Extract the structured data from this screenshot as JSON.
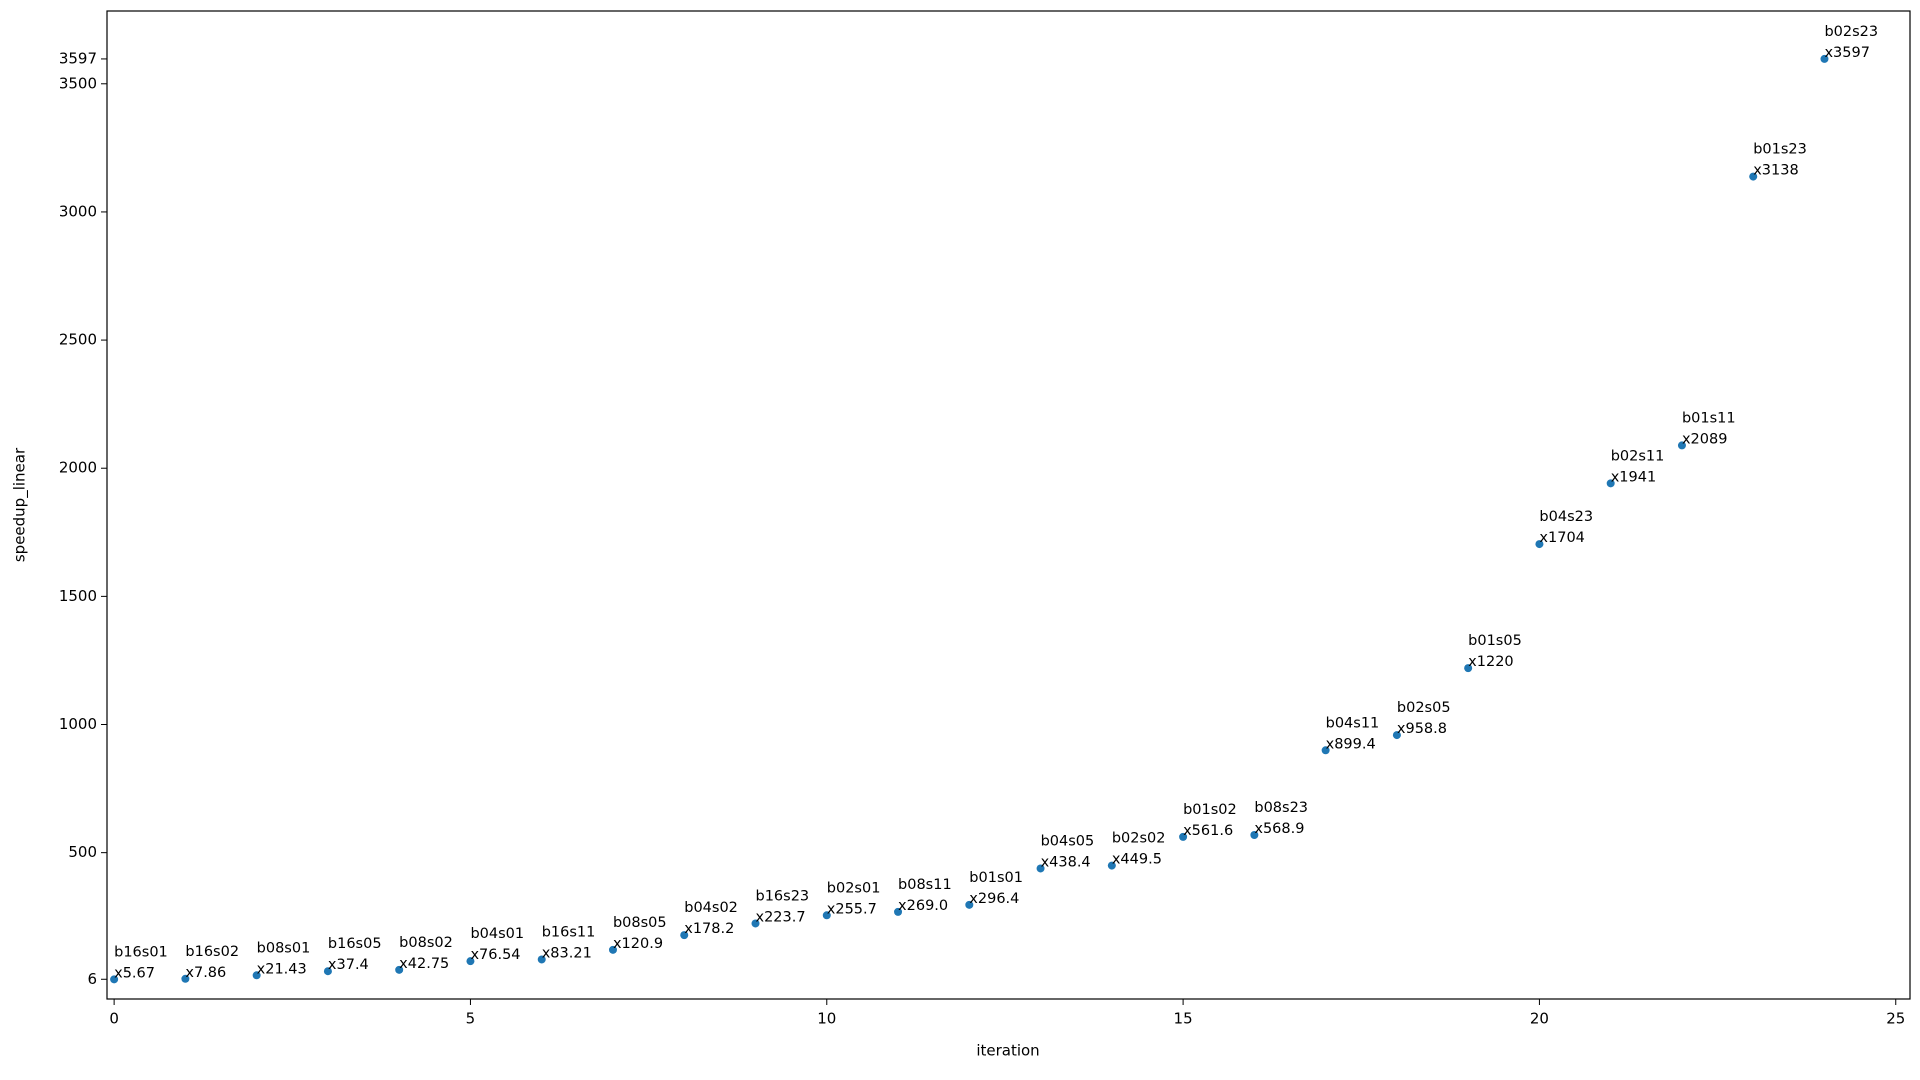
{
  "chart_data": {
    "type": "scatter",
    "xlabel": "iteration",
    "ylabel": "speedup_linear",
    "x": [
      0,
      1,
      2,
      3,
      4,
      5,
      6,
      7,
      8,
      9,
      10,
      11,
      12,
      13,
      14,
      15,
      16,
      17,
      18,
      19,
      20,
      21,
      22,
      23,
      24
    ],
    "series": [
      {
        "color": "#1f77b4",
        "values": [
          5.67,
          7.86,
          21.43,
          37.4,
          42.75,
          76.54,
          83.21,
          120.9,
          178.2,
          223.7,
          255.7,
          269.0,
          296.4,
          438.4,
          449.5,
          561.6,
          568.9,
          899.4,
          958.8,
          1220,
          1704,
          1941,
          2089,
          3138,
          3597
        ],
        "value_labels": [
          "x5.67",
          "x7.86",
          "x21.43",
          "x37.4",
          "x42.75",
          "x76.54",
          "x83.21",
          "x120.9",
          "x178.2",
          "x223.7",
          "x255.7",
          "x269.0",
          "x296.4",
          "x438.4",
          "x449.5",
          "x561.6",
          "x568.9",
          "x899.4",
          "x958.8",
          "x1220",
          "x1704",
          "x1941",
          "x2089",
          "x3138",
          "x3597"
        ],
        "point_labels": [
          "b16s01",
          "b16s02",
          "b08s01",
          "b16s05",
          "b08s02",
          "b04s01",
          "b16s11",
          "b08s05",
          "b04s02",
          "b16s23",
          "b02s01",
          "b08s11",
          "b01s01",
          "b04s05",
          "b02s02",
          "b01s02",
          "b08s23",
          "b04s11",
          "b02s05",
          "b01s05",
          "b04s23",
          "b02s11",
          "b01s11",
          "b01s23",
          "b02s23"
        ]
      }
    ],
    "xlim": [
      -0.1,
      25.2
    ],
    "xticks": [
      0,
      5,
      10,
      15,
      20,
      25
    ],
    "ylim": [
      -71,
      3784
    ],
    "yticks": [
      6,
      500,
      1000,
      1500,
      2000,
      2500,
      3000,
      3500,
      3597
    ],
    "grid": false
  }
}
